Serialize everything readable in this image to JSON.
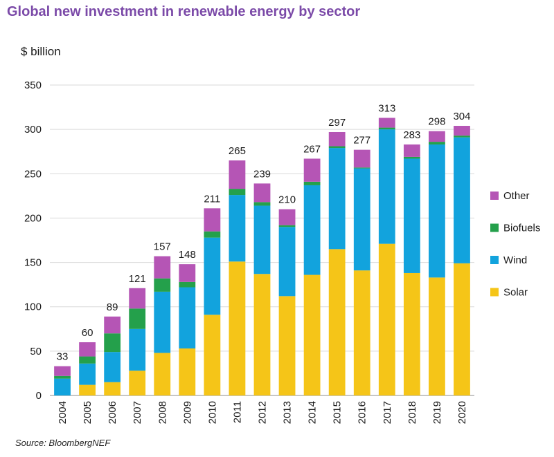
{
  "title": "Global new investment in renewable energy by sector",
  "source": "Source: BloombergNEF",
  "chart_data": {
    "type": "bar",
    "stacked": true,
    "title": "Global new investment in renewable energy by sector",
    "ylabel": "$ billion",
    "xlabel": "",
    "ylim": [
      0,
      350
    ],
    "yticks": [
      0,
      50,
      100,
      150,
      200,
      250,
      300,
      350
    ],
    "grid": true,
    "legend_position": "right",
    "categories": [
      "2004",
      "2005",
      "2006",
      "2007",
      "2008",
      "2009",
      "2010",
      "2011",
      "2012",
      "2013",
      "2014",
      "2015",
      "2016",
      "2017",
      "2018",
      "2019",
      "2020"
    ],
    "series": [
      {
        "name": "Solar",
        "color": "#f5c518",
        "values": [
          0,
          12,
          15,
          28,
          48,
          53,
          91,
          151,
          137,
          112,
          136,
          165,
          141,
          171,
          138,
          133,
          149
        ]
      },
      {
        "name": "Wind",
        "color": "#12a3dd",
        "values": [
          19,
          24,
          34,
          47,
          69,
          69,
          87,
          75,
          77,
          78,
          101,
          114,
          115,
          129,
          129,
          150,
          142
        ]
      },
      {
        "name": "Biofuels",
        "color": "#24a04b",
        "values": [
          3,
          8,
          21,
          23,
          15,
          6,
          7,
          7,
          4,
          2,
          4,
          2,
          1,
          2,
          2,
          3,
          2
        ]
      },
      {
        "name": "Other",
        "color": "#b555b5",
        "values": [
          11,
          16,
          19,
          23,
          25,
          20,
          26,
          32,
          21,
          18,
          26,
          16,
          20,
          11,
          14,
          12,
          11
        ]
      }
    ],
    "totals": [
      33,
      60,
      89,
      121,
      157,
      148,
      211,
      265,
      239,
      210,
      267,
      297,
      277,
      313,
      283,
      298,
      304
    ],
    "legend_order": [
      "Other",
      "Biofuels",
      "Wind",
      "Solar"
    ]
  }
}
